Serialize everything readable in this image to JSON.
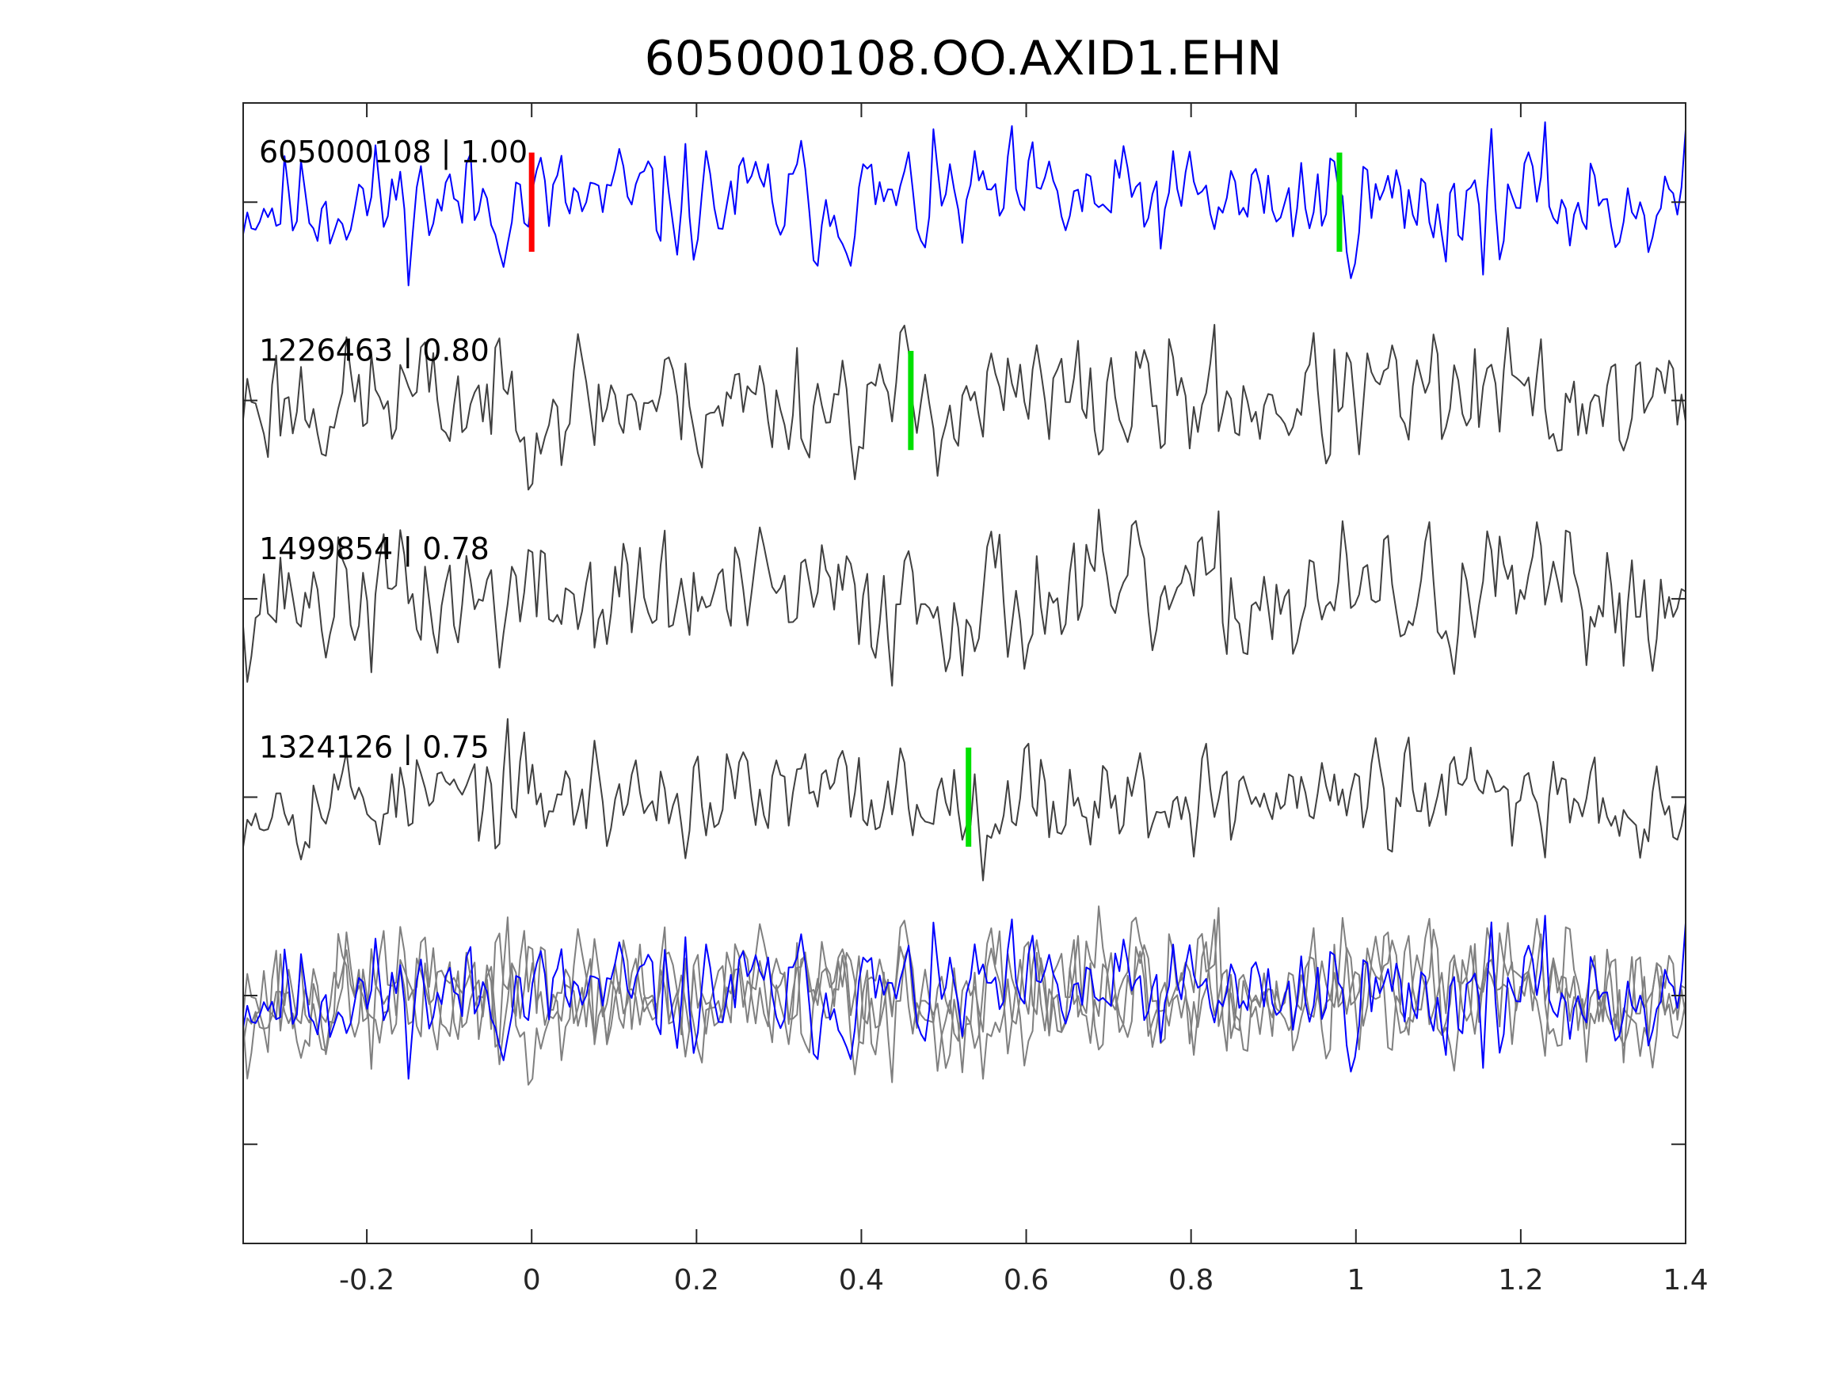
{
  "chart_data": {
    "type": "line",
    "title": "605000108.OO.AXID1.EHN",
    "xlabel": "",
    "ylabel": "",
    "xlim": [
      -0.35,
      1.4
    ],
    "ylim": [
      -0.25,
      5.5
    ],
    "x_ticks": [
      -0.2,
      0,
      0.2,
      0.4,
      0.6,
      0.8,
      1,
      1.2,
      1.4
    ],
    "x_tick_labels": [
      "-0.2",
      "0",
      "0.2",
      "0.4",
      "0.6",
      "0.8",
      "1",
      "1.2",
      "1.4"
    ],
    "y_ticks": [
      0.25,
      1,
      2,
      3,
      4,
      5
    ],
    "y_tick_labels_visible": false,
    "grid": false,
    "legend": "none",
    "overlay_offset": 1,
    "colors": {
      "master": "#0000ff",
      "neighbor": "#404040",
      "overlay_neighbor": "#808080",
      "pick_master": "#ff0000",
      "pick_neighbor": "#00e000",
      "axes": "#262626"
    },
    "series": [
      {
        "label": "605000108 | 1.00",
        "offset": 5,
        "color": "#0000ff",
        "amplitude": 0.42,
        "seed": 11,
        "picks": [
          {
            "time": 0.0,
            "color": "#ff0000"
          },
          {
            "time": 0.98,
            "color": "#00e000"
          }
        ]
      },
      {
        "label": "1226463 | 0.80",
        "offset": 4,
        "color": "#404040",
        "amplitude": 0.45,
        "seed": 23,
        "picks": [
          {
            "time": 0.46,
            "color": "#00e000"
          }
        ]
      },
      {
        "label": "1499854 | 0.78",
        "offset": 3,
        "color": "#404040",
        "amplitude": 0.45,
        "seed": 37,
        "picks": []
      },
      {
        "label": "1324126 | 0.75",
        "offset": 2,
        "color": "#404040",
        "amplitude": 0.42,
        "seed": 53,
        "picks": [
          {
            "time": 0.53,
            "color": "#00e000"
          }
        ]
      }
    ],
    "samples": 350
  }
}
